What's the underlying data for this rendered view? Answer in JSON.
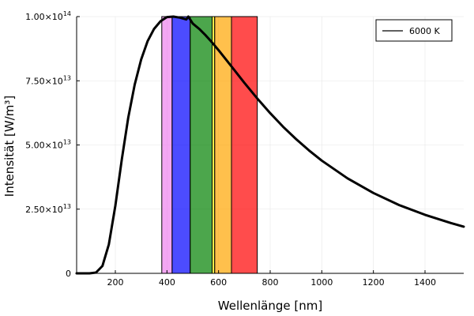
{
  "chart_data": {
    "type": "line",
    "xlabel": "Wellenlänge [nm]",
    "ylabel": "Intensität [W/m³]",
    "xlim": [
      50,
      1550
    ],
    "ylim": [
      0,
      100000000000000.0
    ],
    "grid": true,
    "legend_position": "top-right",
    "x_ticks": [
      {
        "value": 200,
        "label": "200"
      },
      {
        "value": 400,
        "label": "400"
      },
      {
        "value": 600,
        "label": "600"
      },
      {
        "value": 800,
        "label": "800"
      },
      {
        "value": 1000,
        "label": "1000"
      },
      {
        "value": 1200,
        "label": "1200"
      },
      {
        "value": 1400,
        "label": "1400"
      }
    ],
    "y_ticks": [
      {
        "value": 0,
        "mantissa": "0",
        "exponent": ""
      },
      {
        "value": 25000000000000.0,
        "mantissa": "2.50×10",
        "exponent": "13"
      },
      {
        "value": 50000000000000.0,
        "mantissa": "5.00×10",
        "exponent": "13"
      },
      {
        "value": 75000000000000.0,
        "mantissa": "7.50×10",
        "exponent": "13"
      },
      {
        "value": 100000000000000.0,
        "mantissa": "1.00×10",
        "exponent": "14"
      }
    ],
    "series": [
      {
        "name": "6000 K",
        "color": "#000000",
        "x": [
          50,
          100,
          125,
          150,
          175,
          200,
          225,
          250,
          275,
          300,
          325,
          350,
          375,
          400,
          425,
          450,
          475,
          483,
          500,
          525,
          550,
          575,
          600,
          650,
          700,
          750,
          800,
          850,
          900,
          950,
          1000,
          1100,
          1200,
          1300,
          1400,
          1500,
          1550
        ],
        "y": [
          0,
          8300000000.0,
          320000000000.0,
          2900000000000.0,
          11300000000000.0,
          26300000000000.0,
          44400000000000.0,
          60600000000000.0,
          73500000000000.0,
          83300000000000.0,
          90400000000000.0,
          95200000000000.0,
          98200000000000.0,
          99800000000000.0,
          100000000000000.0,
          99600000000000.0,
          98900000000000.0,
          100000000000000.0,
          97300000000000.0,
          95200000000000.0,
          92700000000000.0,
          89900000000000.0,
          86900000000000.0,
          80600000000000.0,
          74200000000000.0,
          68100000000000.0,
          62400000000000.0,
          57100000000000.0,
          52300000000000.0,
          47900000000000.0,
          43900000000000.0,
          37000000000000.0,
          31300000000000.0,
          26600000000000.0,
          22800000000000.0,
          19600000000000.0,
          18200000000000.0
        ]
      }
    ],
    "bands": [
      {
        "name": "violet",
        "x_start": 380,
        "x_end": 420,
        "top": 100000000000000.0,
        "color": "#ee82ee"
      },
      {
        "name": "blue",
        "x_start": 420,
        "x_end": 490,
        "top": 100000000000000.0,
        "color": "#0000ff"
      },
      {
        "name": "green",
        "x_start": 490,
        "x_end": 575,
        "top": 100000000000000.0,
        "color": "#008000"
      },
      {
        "name": "yellow",
        "x_start": 575,
        "x_end": 585,
        "top": 100000000000000.0,
        "color": "#ffff00"
      },
      {
        "name": "orange",
        "x_start": 585,
        "x_end": 650,
        "top": 100000000000000.0,
        "color": "#ffa500"
      },
      {
        "name": "red",
        "x_start": 650,
        "x_end": 750,
        "top": 100000000000000.0,
        "color": "#ff0000"
      }
    ]
  }
}
